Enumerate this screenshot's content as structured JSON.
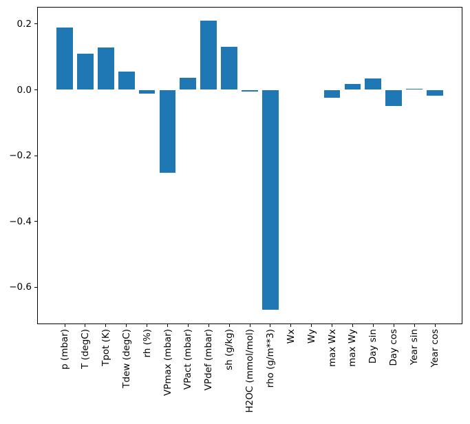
{
  "chart_data": {
    "type": "bar",
    "title": "",
    "xlabel": "",
    "ylabel": "",
    "categories": [
      "p (mbar)",
      "T (degC)",
      "Tpot (K)",
      "Tdew (degC)",
      "rh (%)",
      "VPmax (mbar)",
      "VPact (mbar)",
      "VPdef (mbar)",
      "sh (g/kg)",
      "H2OC (mmol/mol)",
      "rho (g/m**3)",
      "Wx",
      "Wy",
      "max Wx",
      "max Wy",
      "Day sin",
      "Day cos",
      "Year sin",
      "Year cos"
    ],
    "values": [
      0.189,
      0.109,
      0.129,
      0.055,
      -0.011,
      -0.253,
      0.037,
      0.21,
      0.131,
      -0.006,
      -0.669,
      0.0,
      0.0,
      -0.025,
      0.018,
      0.035,
      -0.05,
      0.004,
      -0.018
    ],
    "bar_color": "#1f77b4",
    "bar_width": 0.8,
    "xlim": [
      -1.34,
      19.34
    ],
    "ylim": [
      -0.7124,
      0.2521
    ],
    "yticks": {
      "values": [
        0.2,
        0.0,
        -0.2,
        -0.4,
        -0.6
      ],
      "labels": [
        "0.2",
        "0.0",
        "−0.2",
        "−0.4",
        "−0.6"
      ]
    },
    "grid": false,
    "legend": null,
    "background_color": "#ffffff",
    "axis_color": "#000000"
  }
}
